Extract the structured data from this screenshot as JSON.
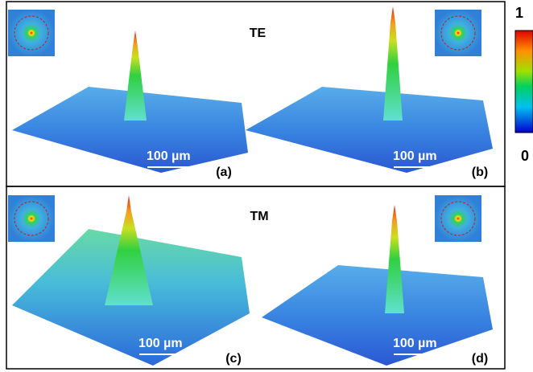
{
  "modes": [
    "TE",
    "TM"
  ],
  "panels": [
    {
      "label": "(a)",
      "scale_bar": "100 µm"
    },
    {
      "label": "(b)",
      "scale_bar": "100 µm"
    },
    {
      "label": "(c)",
      "scale_bar": "100 µm"
    },
    {
      "label": "(d)",
      "scale_bar": "100 µm"
    }
  ],
  "colorbar": {
    "max": "1",
    "min": "0"
  }
}
